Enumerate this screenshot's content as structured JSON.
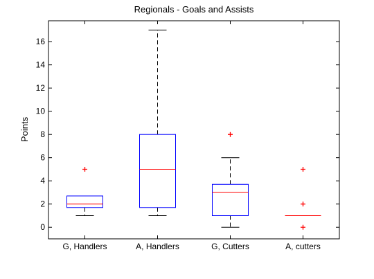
{
  "chart_data": {
    "type": "box",
    "title": "Regionals - Goals and Assists",
    "xlabel": "",
    "ylabel": "Points",
    "ylim": [
      -1,
      17.8
    ],
    "yticks": [
      0,
      2,
      4,
      6,
      8,
      10,
      12,
      14,
      16
    ],
    "grid": false,
    "categories": [
      "G, Handlers",
      "A, Handlers",
      "G, Cutters",
      "A, cutters"
    ],
    "boxes": [
      {
        "category": "G, Handlers",
        "whisker_low": 1,
        "q1": 1.7,
        "median": 2,
        "q3": 2.7,
        "whisker_high": 2.7,
        "outliers": [
          5
        ]
      },
      {
        "category": "A, Handlers",
        "whisker_low": 1,
        "q1": 1.7,
        "median": 5,
        "q3": 8,
        "whisker_high": 17,
        "outliers": []
      },
      {
        "category": "G, Cutters",
        "whisker_low": 0,
        "q1": 1,
        "median": 3,
        "q3": 3.7,
        "whisker_high": 6,
        "outliers": [
          8
        ]
      },
      {
        "category": "A, cutters",
        "whisker_low": 1,
        "q1": 1,
        "median": 1,
        "q3": 1,
        "whisker_high": 1,
        "outliers": [
          0,
          2,
          5
        ]
      }
    ],
    "colors": {
      "box": "#0000ff",
      "median": "#ff0000",
      "whisker": "#000000",
      "outlier": "#ff0000",
      "axis": "#000000"
    }
  }
}
